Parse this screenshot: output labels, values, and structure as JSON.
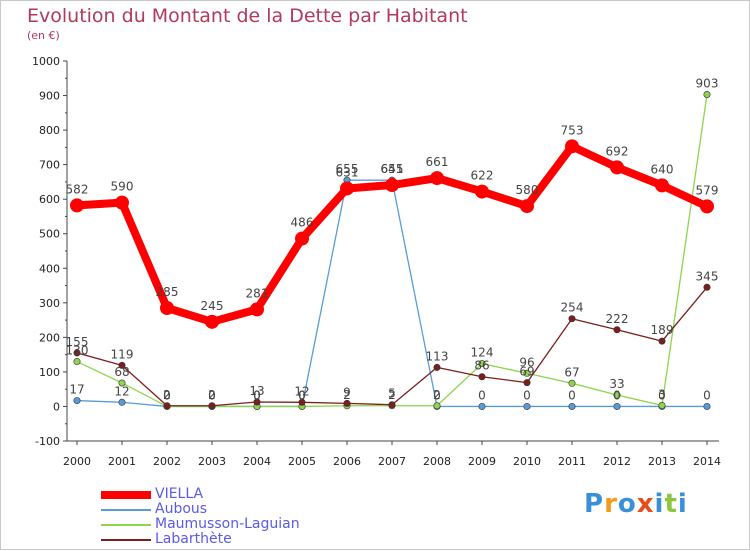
{
  "title": "Evolution du Montant de la Dette par Habitant",
  "unit": "(en €)",
  "logo_text": "Proxiti",
  "chart_data": {
    "type": "line",
    "title": "Evolution du Montant de la Dette par Habitant",
    "ylabel": "(en €)",
    "xlabel": "",
    "x": [
      "2000",
      "2001",
      "2002",
      "2003",
      "2004",
      "2005",
      "2006",
      "2007",
      "2008",
      "2009",
      "2010",
      "2011",
      "2012",
      "2013",
      "2014"
    ],
    "ylim": [
      -100,
      1000
    ],
    "yticks": [
      "-100",
      "0",
      "100",
      "200",
      "300",
      "400",
      "500",
      "600",
      "700",
      "800",
      "900",
      "1000"
    ],
    "grid": false,
    "legend_position": "bottom-left",
    "series": [
      {
        "name": "VIELLA",
        "color": "#ff0000",
        "values": [
          582,
          590,
          285,
          245,
          281,
          486,
          631,
          641,
          661,
          622,
          580,
          753,
          692,
          640,
          579
        ],
        "labels": [
          "582",
          "590",
          "285",
          "245",
          "281",
          "486",
          "631",
          "641",
          "661",
          "622",
          "580",
          "753",
          "692",
          "640",
          "579"
        ]
      },
      {
        "name": "Aubous",
        "color": "#5b9bd5",
        "values": [
          17,
          12,
          0,
          0,
          0,
          0,
          655,
          655,
          0,
          0,
          0,
          0,
          0,
          0,
          0
        ],
        "labels": [
          "17",
          "12",
          "0",
          "0",
          "0",
          "0",
          "655",
          "655",
          "0",
          "0",
          "0",
          "0",
          "0",
          "0",
          "0"
        ]
      },
      {
        "name": "Maumusson-Laguian",
        "color": "#8fd44f",
        "values": [
          130,
          68,
          0,
          0,
          0,
          0,
          2,
          2,
          2,
          124,
          96,
          67,
          33,
          3,
          903
        ],
        "labels": [
          "130",
          "68",
          "0",
          "0",
          "0",
          "0",
          "2",
          "2",
          "2",
          "124",
          "96",
          "67",
          "33",
          "3",
          "903"
        ]
      },
      {
        "name": "Labarthète",
        "color": "#7a1e1e",
        "values": [
          155,
          119,
          2,
          2,
          13,
          12,
          9,
          5,
          113,
          86,
          69,
          254,
          222,
          189,
          345
        ],
        "labels": [
          "155",
          "119",
          "2",
          "2",
          "13",
          "12",
          "9",
          "5",
          "113",
          "86",
          "69",
          "254",
          "222",
          "189",
          "345"
        ]
      }
    ]
  }
}
